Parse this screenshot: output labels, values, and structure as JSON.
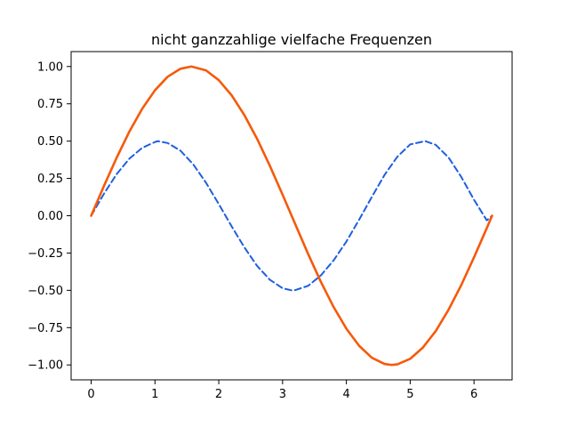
{
  "chart_data": {
    "type": "line",
    "title": "nicht ganzzahlige vielfache Frequenzen",
    "xlabel": "",
    "ylabel": "",
    "xlim": [
      -0.314,
      6.597
    ],
    "ylim": [
      -1.1,
      1.1
    ],
    "grid": false,
    "legend": "none",
    "x_ticks": [
      0,
      1,
      2,
      3,
      4,
      5,
      6
    ],
    "x_tick_labels": [
      "0",
      "1",
      "2",
      "3",
      "4",
      "5",
      "6"
    ],
    "y_ticks": [
      1.0,
      0.75,
      0.5,
      0.25,
      0.0,
      -0.25,
      -0.5,
      -0.75,
      -1.0
    ],
    "y_tick_labels": [
      "1.00",
      "0.75",
      "0.50",
      "0.25",
      "0.00",
      "−0.25",
      "−0.50",
      "−0.75",
      "−1.00"
    ],
    "series": [
      {
        "color": "#1f5fe0",
        "style": "dashed",
        "x": [
          0.0,
          0.2,
          0.4,
          0.6,
          0.8,
          1.0,
          1.047,
          1.2,
          1.4,
          1.6,
          1.8,
          2.0,
          2.2,
          2.4,
          2.6,
          2.8,
          3.0,
          3.142,
          3.2,
          3.4,
          3.6,
          3.8,
          4.0,
          4.2,
          4.4,
          4.6,
          4.8,
          5.0,
          5.236,
          5.4,
          5.6,
          5.8,
          6.0,
          6.2,
          6.283
        ],
        "y": [
          0.0,
          0.147,
          0.279,
          0.383,
          0.455,
          0.494,
          0.5,
          0.487,
          0.436,
          0.344,
          0.221,
          0.078,
          -0.07,
          -0.211,
          -0.336,
          -0.429,
          -0.486,
          -0.5,
          -0.498,
          -0.47,
          -0.4,
          -0.299,
          -0.173,
          -0.026,
          0.127,
          0.275,
          0.396,
          0.478,
          0.5,
          0.475,
          0.391,
          0.26,
          0.107,
          -0.031,
          0.0
        ]
      },
      {
        "color": "#f55a0a",
        "style": "solid",
        "x": [
          0.0,
          0.2,
          0.4,
          0.6,
          0.8,
          1.0,
          1.2,
          1.4,
          1.571,
          1.8,
          2.0,
          2.2,
          2.4,
          2.6,
          2.8,
          3.0,
          3.2,
          3.4,
          3.6,
          3.8,
          4.0,
          4.2,
          4.4,
          4.6,
          4.712,
          4.8,
          5.0,
          5.2,
          5.4,
          5.6,
          5.8,
          6.0,
          6.2,
          6.283
        ],
        "y": [
          0.0,
          0.199,
          0.389,
          0.565,
          0.717,
          0.841,
          0.932,
          0.985,
          1.0,
          0.974,
          0.909,
          0.808,
          0.675,
          0.516,
          0.335,
          0.141,
          -0.058,
          -0.256,
          -0.443,
          -0.612,
          -0.757,
          -0.872,
          -0.952,
          -0.994,
          -1.0,
          -0.996,
          -0.959,
          -0.883,
          -0.773,
          -0.631,
          -0.465,
          -0.279,
          -0.083,
          0.0
        ]
      }
    ]
  }
}
